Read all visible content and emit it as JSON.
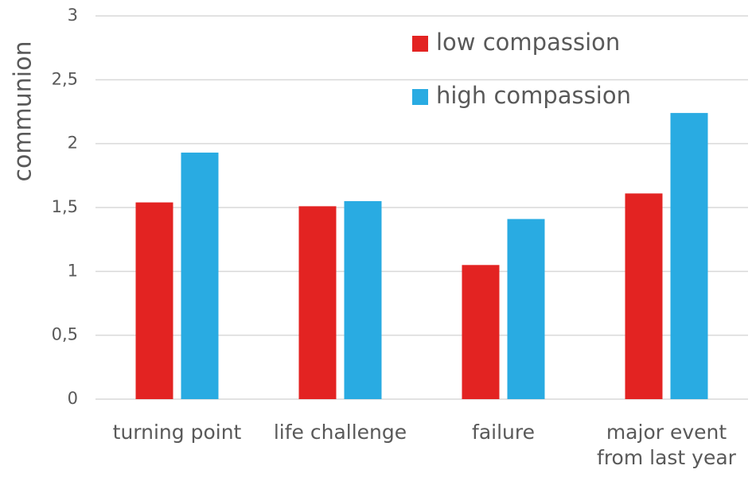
{
  "chart_data": {
    "type": "bar",
    "y_label": "communion",
    "categories": [
      "turning point",
      "life challenge",
      "failure",
      "major event from last year"
    ],
    "series": [
      {
        "name": "low compassion",
        "color": "#e32322",
        "values": [
          1.54,
          1.51,
          1.05,
          1.61
        ]
      },
      {
        "name": "high compassion",
        "color": "#29abe2",
        "values": [
          1.93,
          1.55,
          1.41,
          2.24
        ]
      }
    ],
    "ylim": [
      0,
      3
    ],
    "yticks": [
      0,
      {
        "value": 0.5,
        "label": "0,5"
      },
      1,
      {
        "value": 1.5,
        "label": "1,5"
      },
      2,
      {
        "value": 2.5,
        "label": "2,5"
      },
      3
    ],
    "grid": true,
    "legend": "top-right"
  }
}
